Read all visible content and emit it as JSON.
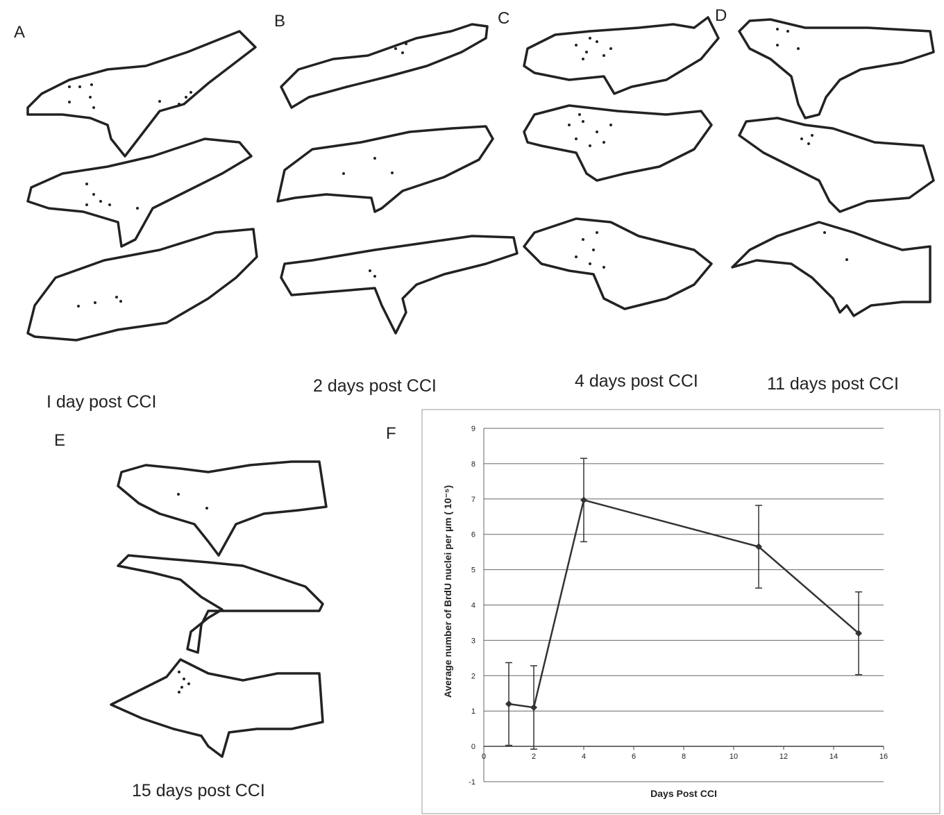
{
  "panels": [
    {
      "label": "A",
      "caption": "I day post CCI"
    },
    {
      "label": "B",
      "caption": "2 days post CCI"
    },
    {
      "label": "C",
      "caption": "4 days post CCI"
    },
    {
      "label": "D",
      "caption": "11 days post CCI"
    },
    {
      "label": "E",
      "caption": "15 days post CCI"
    },
    {
      "label": "F"
    }
  ],
  "chart_data": {
    "type": "line",
    "x": [
      1,
      2,
      4,
      11,
      15
    ],
    "values": [
      1.2,
      1.1,
      6.97,
      5.65,
      3.2
    ],
    "errors": [
      1.17,
      1.18,
      1.18,
      1.17,
      1.17
    ],
    "color": "#333333",
    "xlim": [
      0,
      16
    ],
    "xticks": [
      0,
      2,
      4,
      6,
      8,
      10,
      12,
      14,
      16
    ],
    "ylim": [
      -1,
      9
    ],
    "yticks": [
      -1,
      0,
      1,
      2,
      3,
      4,
      5,
      6,
      7,
      8,
      9
    ],
    "grid": true,
    "x_label": "Days Post CCI",
    "y_label": "Average number of BrdU nuclei per  µm ( 10⁻⁵)"
  }
}
